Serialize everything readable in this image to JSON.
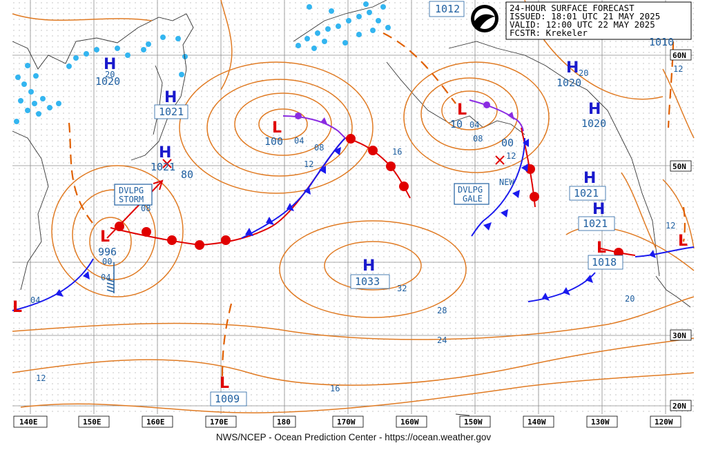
{
  "header": {
    "line1": "24-HOUR SURFACE FORECAST",
    "line2": "ISSUED: 18:01 UTC 21 MAY 2025",
    "line3": "VALID:  12:00 UTC 22 MAY 2025",
    "line4": "FCSTR:  Krekeler"
  },
  "footer": "NWS/NCEP - Ocean Prediction Center - https://ocean.weather.gov",
  "lon_labels": [
    "140E",
    "150E",
    "160E",
    "170E",
    "180",
    "170W",
    "160W",
    "150W",
    "140W",
    "130W",
    "120W"
  ],
  "lat_labels": [
    "60N",
    "50N",
    "30N",
    "20N"
  ],
  "highs": [
    {
      "letter": "H",
      "pressure": "1021"
    },
    {
      "letter": "H",
      "pressure": "1021"
    },
    {
      "letter": "H",
      "pressure": "1033"
    },
    {
      "letter": "H",
      "pressure": "1020"
    },
    {
      "letter": "H",
      "pressure": "1020"
    },
    {
      "letter": "H",
      "pressure": "1021"
    },
    {
      "letter": "H",
      "pressure": "1021"
    },
    {
      "letter": "H",
      "pressure": "1020"
    }
  ],
  "lows": [
    {
      "letter": "L",
      "pressure": "996"
    },
    {
      "letter": "L",
      "pressure": "100"
    },
    {
      "letter": "L",
      "pressure": "10"
    },
    {
      "letter": "L",
      "pressure": "00"
    },
    {
      "letter": "L",
      "pressure": "1018"
    },
    {
      "letter": "L",
      "pressure": "1009"
    }
  ],
  "boxes": {
    "storm": [
      "DVLPG",
      "STORM"
    ],
    "gale": [
      "DVLPG",
      "GALE"
    ]
  },
  "new_label": "NEW",
  "edge_pressures": [
    "1012",
    "1010"
  ],
  "isobar_labels": [
    "20",
    "80",
    "08",
    "04",
    "08",
    "12",
    "16",
    "04",
    "08",
    "12",
    "32",
    "28",
    "24",
    "16",
    "12",
    "20",
    "12",
    "12",
    "20",
    "00",
    "04",
    "04"
  ],
  "colors": {
    "isobar": "#e07a22",
    "label": "#1f5fa0",
    "grid": "#8a8a8a",
    "coast": "#333333",
    "cold_front": "#1a1aee",
    "warm_front": "#e00000",
    "occluded": "#8a2be2",
    "ice": "#33b5f0",
    "low": "#e00000",
    "high": "#1a1acc"
  }
}
